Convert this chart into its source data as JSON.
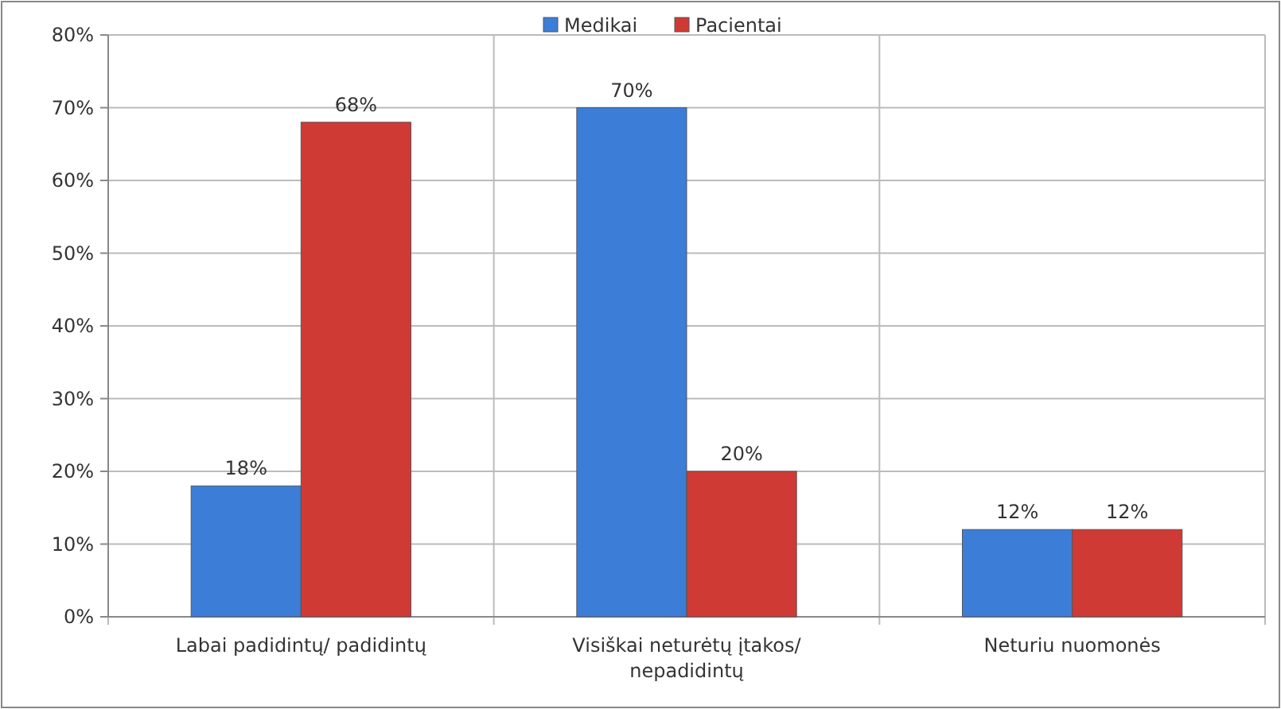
{
  "chart_data": {
    "type": "bar",
    "categories": [
      "Labai padidintų/ padidintų",
      "Visiškai neturėtų įtakos/ nepadidintų",
      "Neturiu nuomonės"
    ],
    "series": [
      {
        "name": "Medikai",
        "color": "#3c7dd8",
        "values": [
          18,
          70,
          12
        ],
        "value_labels": [
          "18%",
          "70%",
          "12%"
        ]
      },
      {
        "name": "Pacientai",
        "color": "#d03a35",
        "values": [
          68,
          20,
          12
        ],
        "value_labels": [
          "68%",
          "20%",
          "12%"
        ]
      }
    ],
    "ylim": [
      0,
      80
    ],
    "yticks": [
      {
        "value": 0,
        "label": "0%"
      },
      {
        "value": 10,
        "label": "10%"
      },
      {
        "value": 20,
        "label": "20%"
      },
      {
        "value": 30,
        "label": "30%"
      },
      {
        "value": 40,
        "label": "40%"
      },
      {
        "value": 50,
        "label": "50%"
      },
      {
        "value": 60,
        "label": "60%"
      },
      {
        "value": 70,
        "label": "70%"
      },
      {
        "value": 80,
        "label": "80%"
      }
    ],
    "grid": true,
    "legend": "top"
  }
}
